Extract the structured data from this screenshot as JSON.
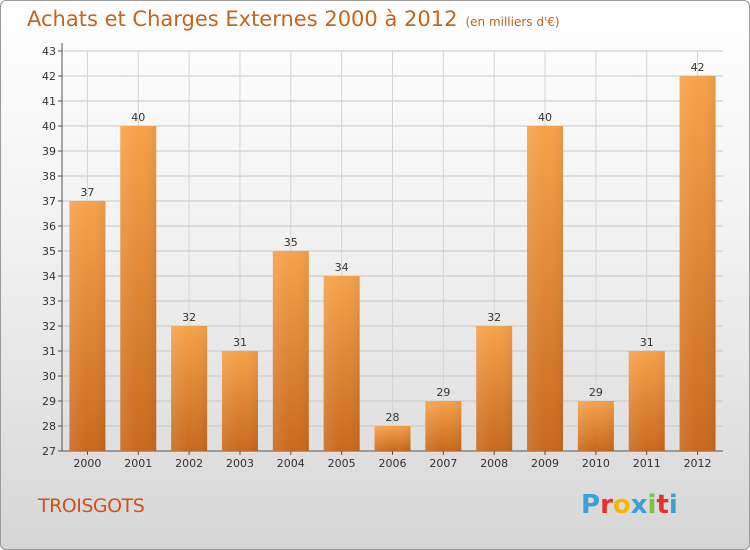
{
  "title": "Achats et Charges Externes 2000 à 2012",
  "subtitle": "(en milliers d'€)",
  "location": "TROISGOTS",
  "logo": {
    "text": "Proxiti",
    "letters": [
      "P",
      "r",
      "o",
      "x",
      "i",
      "t",
      "i"
    ],
    "colors": [
      "#3aa0d8",
      "#e8312f",
      "#f5b700",
      "#3aa0d8",
      "#7cc242",
      "#e8312f",
      "#3aa0d8"
    ]
  },
  "colors": {
    "bar": "#f0963c",
    "title": "#c8641e",
    "location": "#d2511e"
  },
  "chart_data": {
    "type": "bar",
    "title": "Achats et Charges Externes 2000 à 2012",
    "subtitle": "(en milliers d'€)",
    "xlabel": "",
    "ylabel": "",
    "categories": [
      "2000",
      "2001",
      "2002",
      "2003",
      "2004",
      "2005",
      "2006",
      "2007",
      "2008",
      "2009",
      "2010",
      "2011",
      "2012"
    ],
    "values": [
      37,
      40,
      32,
      31,
      35,
      34,
      28,
      29,
      32,
      40,
      29,
      31,
      42
    ],
    "ylim": [
      27,
      43
    ],
    "yticks": [
      27,
      28,
      29,
      30,
      31,
      32,
      33,
      34,
      35,
      36,
      37,
      38,
      39,
      40,
      41,
      42,
      43
    ],
    "grid": true,
    "data_labels": true
  }
}
